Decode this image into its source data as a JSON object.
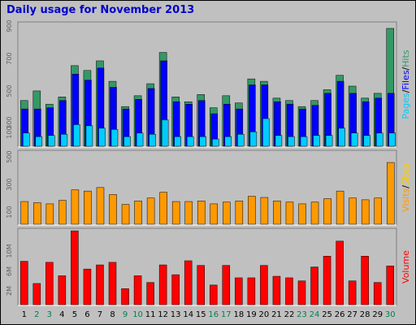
{
  "chart_data": {
    "type": "bar",
    "title": "Daily usage for November 2013",
    "categories": [
      "1",
      "2",
      "3",
      "4",
      "5",
      "6",
      "7",
      "8",
      "9",
      "10",
      "11",
      "12",
      "13",
      "14",
      "15",
      "16",
      "17",
      "18",
      "19",
      "20",
      "21",
      "22",
      "23",
      "24",
      "25",
      "26",
      "27",
      "28",
      "29",
      "30"
    ],
    "weekend_days": [
      "2",
      "3",
      "9",
      "10",
      "16",
      "17",
      "23",
      "24",
      "30"
    ],
    "colors": {
      "hits": "#339966",
      "files": "#0000ff",
      "pages": "#00ccff",
      "visits": "#ff9900",
      "sites": "#ffcc00",
      "volume": "#ff0000",
      "weekday_label": "#000000",
      "weekend_label": "#00804f",
      "title": "#0000cc"
    },
    "panels": [
      {
        "id": "hits",
        "ticks": [
          "900",
          "700",
          "500",
          "300",
          "100"
        ],
        "ylim": [
          0,
          1000
        ],
        "legend": [
          {
            "text": "Pages",
            "color": "#00ccff"
          },
          {
            "text": "/",
            "color": "#000000"
          },
          {
            "text": "Files",
            "color": "#0000ff"
          },
          {
            "text": "/",
            "color": "#000000"
          },
          {
            "text": "Hits",
            "color": "#339966"
          }
        ],
        "series": [
          {
            "name": "Hits",
            "values": [
              380,
              460,
              350,
              410,
              670,
              630,
              710,
              540,
              330,
              420,
              520,
              780,
              410,
              370,
              430,
              320,
              420,
              360,
              560,
              540,
              400,
              380,
              330,
              380,
              470,
              590,
              500,
              400,
              440,
              980
            ]
          },
          {
            "name": "Files",
            "values": [
              310,
              310,
              320,
              380,
              600,
              550,
              650,
              490,
              310,
              390,
              480,
              710,
              370,
              350,
              380,
              270,
              350,
              310,
              510,
              510,
              370,
              350,
              310,
              340,
              440,
              540,
              440,
              370,
              400,
              440
            ]
          },
          {
            "name": "Pages",
            "values": [
              110,
              80,
              90,
              100,
              180,
              170,
              150,
              140,
              80,
              110,
              100,
              220,
              80,
              80,
              80,
              60,
              80,
              100,
              120,
              230,
              90,
              80,
              80,
              90,
              90,
              150,
              110,
              90,
              110,
              110
            ]
          }
        ]
      },
      {
        "id": "visits",
        "ticks": [
          "500",
          "300",
          "100"
        ],
        "ylim": [
          0,
          600
        ],
        "legend": [
          {
            "text": "Visits",
            "color": "#ff9900"
          },
          {
            "text": "/",
            "color": "#000000"
          },
          {
            "text": "Sites",
            "color": "#ffcc00"
          }
        ],
        "series": [
          {
            "name": "Visits",
            "values": [
              195,
              185,
              175,
              205,
              295,
              285,
              315,
              255,
              170,
              200,
              225,
              275,
              195,
              195,
              200,
              175,
              190,
              200,
              240,
              230,
              200,
              190,
              175,
              190,
              220,
              285,
              225,
              210,
              225,
              530
            ]
          },
          {
            "name": "Sites",
            "values": [
              0,
              0,
              0,
              0,
              0,
              0,
              0,
              0,
              0,
              0,
              0,
              0,
              0,
              0,
              0,
              0,
              0,
              0,
              0,
              0,
              0,
              0,
              0,
              0,
              0,
              0,
              0,
              0,
              0,
              0
            ]
          }
        ]
      },
      {
        "id": "volume",
        "ticks": [
          "10M",
          "6M",
          "2M"
        ],
        "ylim": [
          0,
          14
        ],
        "legend": [
          {
            "text": "Volume",
            "color": "#ff0000"
          }
        ],
        "series": [
          {
            "name": "Volume",
            "values": [
              8.4,
              4.1,
              8.2,
              5.6,
              14.3,
              6.9,
              7.7,
              8.2,
              3.1,
              5.6,
              4.3,
              7.7,
              5.8,
              8.5,
              7.6,
              3.8,
              7.6,
              5.2,
              5.2,
              7.6,
              5.5,
              5.2,
              4.6,
              7.3,
              9.4,
              12.3,
              4.6,
              9.4,
              4.3,
              7.5
            ]
          }
        ]
      }
    ]
  }
}
